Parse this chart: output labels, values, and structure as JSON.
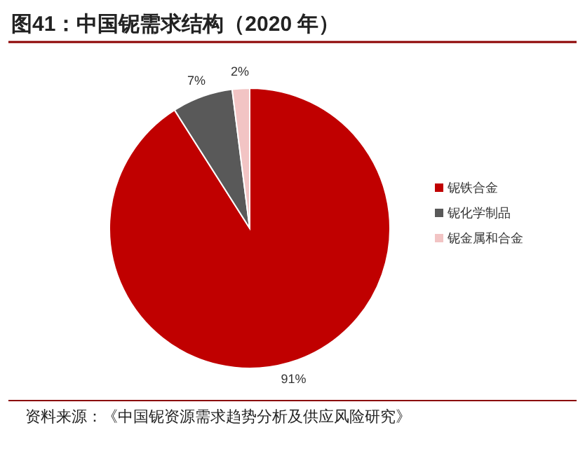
{
  "chart_data": {
    "type": "pie",
    "title": "图41：中国铌需求结构（2020 年）",
    "categories": [
      "铌铁合金",
      "铌化学制品",
      "铌金属和合金"
    ],
    "values": [
      91,
      7,
      2
    ],
    "colors": [
      "#c00000",
      "#595959",
      "#f2c4c4"
    ],
    "value_labels": [
      "91%",
      "7%",
      "2%"
    ],
    "legend": "right",
    "annotations": [
      "资料来源：《中国铌资源需求趋势分析及供应风险研究》"
    ]
  }
}
